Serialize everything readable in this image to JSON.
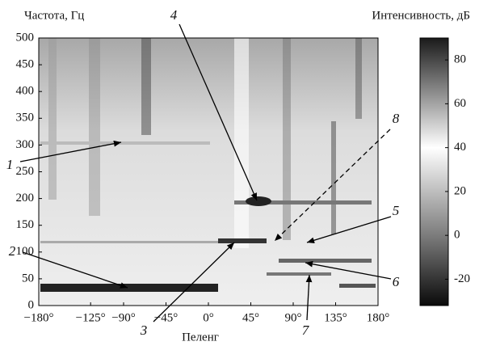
{
  "chart_data": {
    "type": "heatmap",
    "y_label": "Частота, Гц",
    "x_label": "Пеленг",
    "xlim": [
      -180,
      180
    ],
    "xticks": [
      {
        "value": -180,
        "label": "−180°"
      },
      {
        "value": -125,
        "label": "−125°"
      },
      {
        "value": -90,
        "label": "−90°"
      },
      {
        "value": -45,
        "label": "−45°"
      },
      {
        "value": 0,
        "label": "0°"
      },
      {
        "value": 45,
        "label": "45°"
      },
      {
        "value": 90,
        "label": "90°"
      },
      {
        "value": 135,
        "label": "135°"
      },
      {
        "value": 180,
        "label": "180°"
      }
    ],
    "ylim": [
      0,
      500
    ],
    "yticks": [
      0,
      50,
      100,
      150,
      200,
      250,
      300,
      350,
      400,
      450,
      500
    ],
    "colorbar": {
      "label": "Интенсивность, дБ",
      "lim": [
        -32,
        90
      ],
      "ticks": [
        -20,
        0,
        20,
        40,
        60,
        80
      ]
    },
    "annotations": [
      "1",
      "2",
      "3",
      "4",
      "5",
      "6",
      "7",
      "8"
    ]
  }
}
